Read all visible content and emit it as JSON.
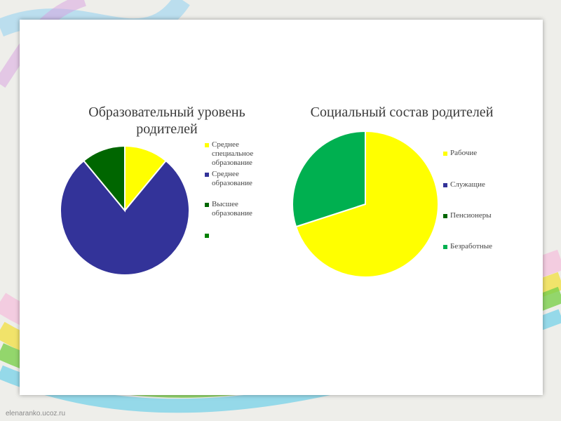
{
  "site": "elenaranko.ucoz.ru",
  "chart_data": [
    {
      "type": "pie",
      "title": "Образовательный уровень родителей",
      "categories": [
        "Среднее специальное образование",
        "Среднее образование",
        "Высшее образование",
        ""
      ],
      "values": [
        11,
        78,
        11,
        0
      ],
      "colors": [
        "#ffff00",
        "#333399",
        "#006600",
        "#008000"
      ]
    },
    {
      "type": "pie",
      "title": "Социальный состав родителей",
      "categories": [
        "Рабочие",
        "Служащие",
        "Пенсионеры",
        "Безработные"
      ],
      "values": [
        70,
        0,
        0,
        30
      ],
      "colors": [
        "#ffff00",
        "#333399",
        "#006600",
        "#00b050"
      ]
    }
  ]
}
